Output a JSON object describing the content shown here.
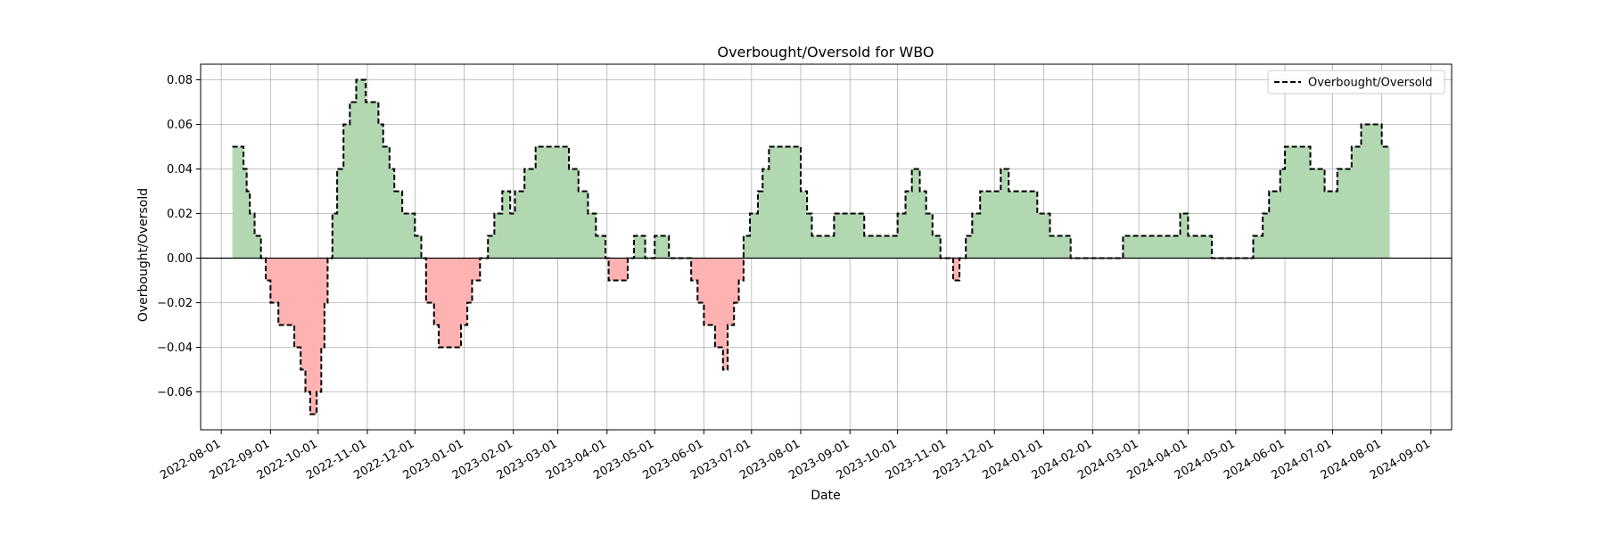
{
  "chart_data": {
    "type": "area",
    "title": "Overbought/Oversold for WBO",
    "xlabel": "Date",
    "ylabel": "Overbought/Oversold",
    "xlim": [
      "2022-07-19",
      "2024-09-14"
    ],
    "ylim": [
      -0.077,
      0.087
    ],
    "x_ticks": [
      "2022-08-01",
      "2022-09-01",
      "2022-10-01",
      "2022-11-01",
      "2022-12-01",
      "2023-01-01",
      "2023-02-01",
      "2023-03-01",
      "2023-04-01",
      "2023-05-01",
      "2023-06-01",
      "2023-07-01",
      "2023-08-01",
      "2023-09-01",
      "2023-10-01",
      "2023-11-01",
      "2023-12-01",
      "2024-01-01",
      "2024-02-01",
      "2024-03-01",
      "2024-04-01",
      "2024-05-01",
      "2024-06-01",
      "2024-07-01",
      "2024-08-01",
      "2024-09-01"
    ],
    "y_ticks": [
      -0.06,
      -0.04,
      -0.02,
      0.0,
      0.02,
      0.04,
      0.06,
      0.08
    ],
    "y_tick_labels": [
      "−0.06",
      "−0.04",
      "−0.02",
      "0.00",
      "0.02",
      "0.04",
      "0.06",
      "0.08"
    ],
    "grid": true,
    "legend": {
      "position": "top-right",
      "entries": [
        "Overbought/Oversold"
      ]
    },
    "colors": {
      "positive_fill": "#b2d8b2",
      "negative_fill": "#ffb2b2",
      "line": "#000000",
      "zero_line": "#000000",
      "grid": "#b0b0b0"
    },
    "series": [
      {
        "name": "Overbought/Oversold",
        "style": "dashed",
        "points": [
          [
            "2022-08-08",
            0.05
          ],
          [
            "2022-08-12",
            0.05
          ],
          [
            "2022-08-15",
            0.04
          ],
          [
            "2022-08-17",
            0.03
          ],
          [
            "2022-08-19",
            0.02
          ],
          [
            "2022-08-22",
            0.01
          ],
          [
            "2022-08-26",
            0.0
          ],
          [
            "2022-08-29",
            -0.01
          ],
          [
            "2022-09-01",
            -0.02
          ],
          [
            "2022-09-06",
            -0.03
          ],
          [
            "2022-09-14",
            -0.03
          ],
          [
            "2022-09-16",
            -0.04
          ],
          [
            "2022-09-20",
            -0.05
          ],
          [
            "2022-09-23",
            -0.06
          ],
          [
            "2022-09-26",
            -0.07
          ],
          [
            "2022-09-30",
            -0.06
          ],
          [
            "2022-10-03",
            -0.04
          ],
          [
            "2022-10-05",
            -0.02
          ],
          [
            "2022-10-07",
            0.0
          ],
          [
            "2022-10-10",
            0.02
          ],
          [
            "2022-10-13",
            0.04
          ],
          [
            "2022-10-17",
            0.06
          ],
          [
            "2022-10-21",
            0.07
          ],
          [
            "2022-10-25",
            0.08
          ],
          [
            "2022-10-31",
            0.07
          ],
          [
            "2022-11-08",
            0.06
          ],
          [
            "2022-11-11",
            0.05
          ],
          [
            "2022-11-15",
            0.04
          ],
          [
            "2022-11-18",
            0.03
          ],
          [
            "2022-11-23",
            0.02
          ],
          [
            "2022-12-01",
            0.01
          ],
          [
            "2022-12-05",
            0.0
          ],
          [
            "2022-12-08",
            -0.02
          ],
          [
            "2022-12-13",
            -0.03
          ],
          [
            "2022-12-16",
            -0.04
          ],
          [
            "2022-12-30",
            -0.03
          ],
          [
            "2023-01-03",
            -0.02
          ],
          [
            "2023-01-06",
            -0.01
          ],
          [
            "2023-01-11",
            0.0
          ],
          [
            "2023-01-16",
            0.01
          ],
          [
            "2023-01-20",
            0.02
          ],
          [
            "2023-01-25",
            0.03
          ],
          [
            "2023-01-30",
            0.02
          ],
          [
            "2023-02-02",
            0.03
          ],
          [
            "2023-02-08",
            0.04
          ],
          [
            "2023-02-15",
            0.05
          ],
          [
            "2023-03-01",
            0.05
          ],
          [
            "2023-03-08",
            0.04
          ],
          [
            "2023-03-14",
            0.03
          ],
          [
            "2023-03-20",
            0.02
          ],
          [
            "2023-03-25",
            0.01
          ],
          [
            "2023-03-31",
            0.0
          ],
          [
            "2023-04-02",
            -0.01
          ],
          [
            "2023-04-14",
            0.0
          ],
          [
            "2023-04-18",
            0.01
          ],
          [
            "2023-04-25",
            0.0
          ],
          [
            "2023-05-01",
            0.01
          ],
          [
            "2023-05-10",
            0.0
          ],
          [
            "2023-05-20",
            0.0
          ],
          [
            "2023-05-24",
            -0.01
          ],
          [
            "2023-05-28",
            -0.02
          ],
          [
            "2023-06-01",
            -0.03
          ],
          [
            "2023-06-08",
            -0.04
          ],
          [
            "2023-06-13",
            -0.05
          ],
          [
            "2023-06-16",
            -0.03
          ],
          [
            "2023-06-20",
            -0.02
          ],
          [
            "2023-06-23",
            -0.01
          ],
          [
            "2023-06-26",
            0.01
          ],
          [
            "2023-06-30",
            0.02
          ],
          [
            "2023-07-05",
            0.03
          ],
          [
            "2023-07-08",
            0.04
          ],
          [
            "2023-07-12",
            0.05
          ],
          [
            "2023-07-28",
            0.05
          ],
          [
            "2023-08-01",
            0.03
          ],
          [
            "2023-08-05",
            0.02
          ],
          [
            "2023-08-08",
            0.01
          ],
          [
            "2023-08-20",
            0.01
          ],
          [
            "2023-08-22",
            0.02
          ],
          [
            "2023-09-08",
            0.02
          ],
          [
            "2023-09-10",
            0.01
          ],
          [
            "2023-09-28",
            0.01
          ],
          [
            "2023-10-01",
            0.02
          ],
          [
            "2023-10-06",
            0.03
          ],
          [
            "2023-10-10",
            0.04
          ],
          [
            "2023-10-15",
            0.03
          ],
          [
            "2023-10-19",
            0.02
          ],
          [
            "2023-10-23",
            0.01
          ],
          [
            "2023-10-28",
            0.0
          ],
          [
            "2023-11-05",
            -0.01
          ],
          [
            "2023-11-09",
            0.0
          ],
          [
            "2023-11-13",
            0.01
          ],
          [
            "2023-11-17",
            0.02
          ],
          [
            "2023-11-22",
            0.03
          ],
          [
            "2023-12-05",
            0.04
          ],
          [
            "2023-12-10",
            0.03
          ],
          [
            "2023-12-28",
            0.02
          ],
          [
            "2024-01-05",
            0.01
          ],
          [
            "2024-01-18",
            0.0
          ],
          [
            "2024-02-18",
            0.0
          ],
          [
            "2024-02-20",
            0.01
          ],
          [
            "2024-03-25",
            0.01
          ],
          [
            "2024-03-27",
            0.02
          ],
          [
            "2024-04-01",
            0.01
          ],
          [
            "2024-04-14",
            0.01
          ],
          [
            "2024-04-16",
            0.0
          ],
          [
            "2024-05-10",
            0.0
          ],
          [
            "2024-05-12",
            0.01
          ],
          [
            "2024-05-18",
            0.02
          ],
          [
            "2024-05-22",
            0.03
          ],
          [
            "2024-05-29",
            0.04
          ],
          [
            "2024-06-01",
            0.05
          ],
          [
            "2024-06-15",
            0.05
          ],
          [
            "2024-06-17",
            0.04
          ],
          [
            "2024-06-24",
            0.04
          ],
          [
            "2024-06-26",
            0.03
          ],
          [
            "2024-07-02",
            0.03
          ],
          [
            "2024-07-04",
            0.04
          ],
          [
            "2024-07-10",
            0.04
          ],
          [
            "2024-07-13",
            0.05
          ],
          [
            "2024-07-19",
            0.06
          ],
          [
            "2024-07-30",
            0.06
          ],
          [
            "2024-08-01",
            0.05
          ],
          [
            "2024-08-06",
            0.05
          ]
        ]
      }
    ]
  }
}
